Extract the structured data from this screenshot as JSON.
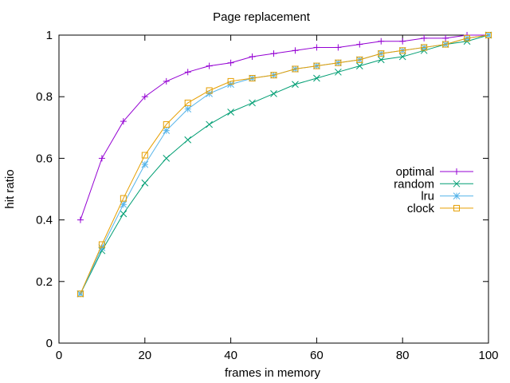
{
  "chart_data": {
    "type": "line",
    "title": "Page replacement",
    "xlabel": "frames in memory",
    "ylabel": "hit ratio",
    "xlim": [
      0,
      100
    ],
    "ylim": [
      0,
      1
    ],
    "xticks": [
      0,
      20,
      40,
      60,
      80,
      100
    ],
    "yticks": [
      0,
      0.2,
      0.4,
      0.6,
      0.8,
      1
    ],
    "xtick_labels": [
      "0",
      "20",
      "40",
      "60",
      "80",
      "100"
    ],
    "ytick_labels": [
      "0",
      "0.2",
      "0.4",
      "0.6",
      "0.8",
      "1"
    ],
    "grid": false,
    "legend_position": "right",
    "x": [
      5,
      10,
      15,
      20,
      25,
      30,
      35,
      40,
      45,
      50,
      55,
      60,
      65,
      70,
      75,
      80,
      85,
      90,
      95,
      100
    ],
    "series": [
      {
        "name": "optimal",
        "color": "#9400d3",
        "marker": "plus",
        "values": [
          0.4,
          0.6,
          0.72,
          0.8,
          0.85,
          0.88,
          0.9,
          0.91,
          0.93,
          0.94,
          0.95,
          0.96,
          0.96,
          0.97,
          0.98,
          0.98,
          0.99,
          0.99,
          1.0,
          1.0
        ]
      },
      {
        "name": "random",
        "color": "#009e73",
        "marker": "cross",
        "values": [
          0.16,
          0.3,
          0.42,
          0.52,
          0.6,
          0.66,
          0.71,
          0.75,
          0.78,
          0.81,
          0.84,
          0.86,
          0.88,
          0.9,
          0.92,
          0.93,
          0.95,
          0.97,
          0.98,
          1.0
        ]
      },
      {
        "name": "lru",
        "color": "#56b4e9",
        "marker": "star",
        "values": [
          0.16,
          0.31,
          0.45,
          0.58,
          0.69,
          0.76,
          0.81,
          0.84,
          0.86,
          0.87,
          0.89,
          0.9,
          0.91,
          0.92,
          0.94,
          0.95,
          0.96,
          0.97,
          0.99,
          1.0
        ]
      },
      {
        "name": "clock",
        "color": "#e69f00",
        "marker": "square",
        "values": [
          0.16,
          0.32,
          0.47,
          0.61,
          0.71,
          0.78,
          0.82,
          0.85,
          0.86,
          0.87,
          0.89,
          0.9,
          0.91,
          0.92,
          0.94,
          0.95,
          0.96,
          0.97,
          0.99,
          1.0
        ]
      }
    ]
  }
}
